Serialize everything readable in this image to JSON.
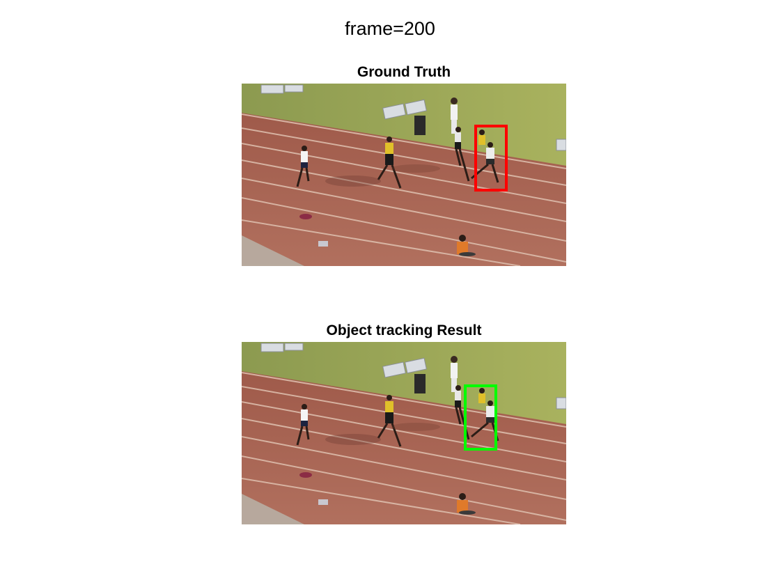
{
  "figure": {
    "suptitle": "frame=200"
  },
  "panels": [
    {
      "title": "Ground Truth",
      "box_label": "ground-truth-box",
      "box_color": "#ff0000"
    },
    {
      "title": "Object tracking Result",
      "box_label": "tracking-result-box",
      "box_color": "#00ff00"
    }
  ],
  "colors": {
    "grass": "#9aa556",
    "track": "#a8614f",
    "lane_line": "#d9b8a6"
  }
}
